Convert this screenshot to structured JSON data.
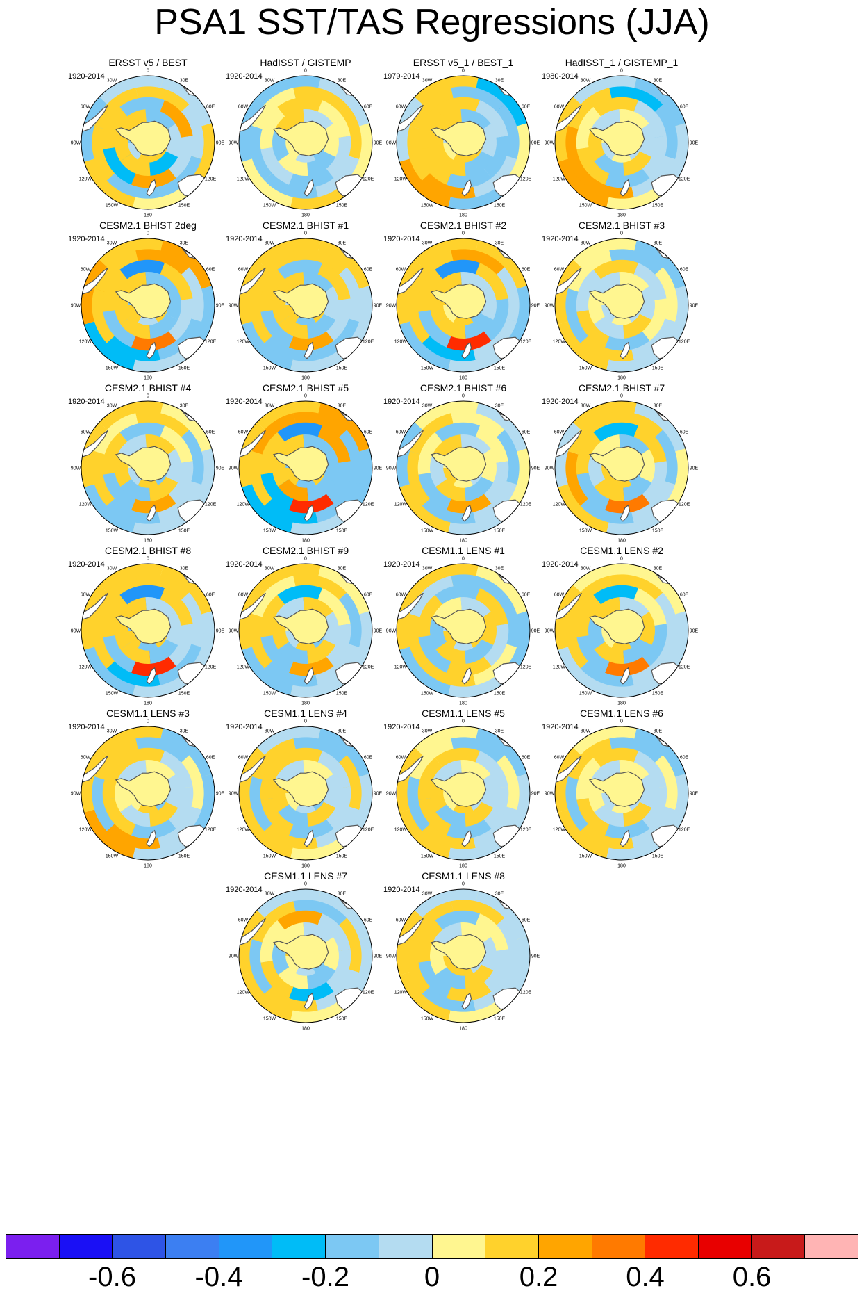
{
  "title": "PSA1 SST/TAS Regressions (JJA)",
  "longitude_labels": [
    "0",
    "30E",
    "60E",
    "90E",
    "120E",
    "150E",
    "180",
    "150W",
    "120W",
    "90W",
    "60W",
    "30W"
  ],
  "panels": [
    {
      "title": "ERSST v5 / BEST",
      "period": "1920-2014",
      "pattern": [
        [
          0.18,
          0.1,
          -0.05
        ],
        [
          -0.22,
          0.15,
          0.12
        ],
        [
          0.2,
          -0.25,
          0.1
        ],
        [
          -0.15,
          0.12,
          0.18
        ],
        [
          0.1,
          -0.18,
          -0.1
        ]
      ]
    },
    {
      "title": "HadISST / GISTEMP",
      "period": "1920-2014",
      "pattern": [
        [
          -0.12,
          -0.1,
          0.05
        ],
        [
          -0.15,
          0.05,
          -0.12
        ],
        [
          -0.18,
          -0.1,
          0.08
        ],
        [
          -0.2,
          -0.15,
          0.05
        ],
        [
          0.05,
          -0.12,
          -0.15
        ]
      ]
    },
    {
      "title": "ERSST v5_1 / BEST_1",
      "period": "1979-2014",
      "pattern": [
        [
          0.1,
          0.12,
          0.05
        ],
        [
          -0.2,
          0.15,
          0.1
        ],
        [
          -0.18,
          0.1,
          0.15
        ],
        [
          0.25,
          0.18,
          0.1
        ],
        [
          0.28,
          -0.1,
          0.15
        ]
      ]
    },
    {
      "title": "HadISST_1 / GISTEMP_1",
      "period": "1980-2014",
      "pattern": [
        [
          -0.1,
          0.08,
          -0.05
        ],
        [
          0.12,
          -0.12,
          0.1
        ],
        [
          -0.15,
          0.1,
          0.05
        ],
        [
          0.28,
          0.22,
          0.12
        ],
        [
          0.2,
          0.1,
          -0.08
        ]
      ]
    },
    {
      "title": "CESM2.1 BHIST 2deg",
      "period": "1920-2014",
      "pattern": [
        [
          0.15,
          -0.1,
          0.12
        ],
        [
          -0.15,
          0.18,
          0.15
        ],
        [
          0.38,
          -0.2,
          0.12
        ],
        [
          -0.3,
          0.1,
          0.15
        ],
        [
          -0.25,
          0.2,
          0.1
        ]
      ]
    },
    {
      "title": "CESM2.1 BHIST #1",
      "period": "1920-2014",
      "pattern": [
        [
          0.12,
          -0.12,
          0.1
        ],
        [
          -0.18,
          0.15,
          0.12
        ],
        [
          0.22,
          -0.15,
          0.1
        ],
        [
          -0.2,
          0.12,
          0.15
        ],
        [
          -0.15,
          0.1,
          0.12
        ]
      ]
    },
    {
      "title": "CESM2.1 BHIST #2",
      "period": "1920-2014",
      "pattern": [
        [
          -0.15,
          0.1,
          0.08
        ],
        [
          -0.2,
          0.12,
          0.1
        ],
        [
          0.45,
          -0.2,
          0.15
        ],
        [
          -0.25,
          0.1,
          0.12
        ],
        [
          -0.2,
          0.15,
          0.1
        ]
      ]
    },
    {
      "title": "CESM2.1 BHIST #3",
      "period": "1920-2014",
      "pattern": [
        [
          -0.1,
          0.08,
          -0.08
        ],
        [
          0.1,
          -0.1,
          0.05
        ],
        [
          -0.15,
          0.1,
          -0.1
        ],
        [
          0.15,
          -0.12,
          0.08
        ],
        [
          0.18,
          0.1,
          0.05
        ]
      ]
    },
    {
      "title": "CESM2.1 BHIST #4",
      "period": "1920-2014",
      "pattern": [
        [
          -0.12,
          0.1,
          -0.08
        ],
        [
          0.1,
          -0.15,
          0.1
        ],
        [
          0.25,
          -0.12,
          0.1
        ],
        [
          -0.15,
          0.18,
          0.08
        ],
        [
          -0.12,
          0.1,
          0.12
        ]
      ]
    },
    {
      "title": "CESM2.1 BHIST #5",
      "period": "1920-2014",
      "pattern": [
        [
          0.18,
          -0.12,
          0.1
        ],
        [
          -0.2,
          0.2,
          0.15
        ],
        [
          0.48,
          -0.25,
          0.18
        ],
        [
          -0.3,
          0.15,
          0.2
        ],
        [
          -0.25,
          0.15,
          0.12
        ]
      ]
    },
    {
      "title": "CESM2.1 BHIST #6",
      "period": "1920-2014",
      "pattern": [
        [
          -0.1,
          0.08,
          0.1
        ],
        [
          -0.15,
          0.12,
          -0.1
        ],
        [
          0.22,
          -0.12,
          0.08
        ],
        [
          -0.12,
          0.15,
          0.1
        ],
        [
          0.1,
          -0.12,
          0.08
        ]
      ]
    },
    {
      "title": "CESM2.1 BHIST #7",
      "period": "1920-2014",
      "pattern": [
        [
          -0.15,
          0.1,
          0.12
        ],
        [
          -0.12,
          0.15,
          -0.1
        ],
        [
          0.3,
          -0.15,
          0.12
        ],
        [
          -0.15,
          0.2,
          0.1
        ],
        [
          0.12,
          -0.1,
          0.1
        ]
      ]
    },
    {
      "title": "CESM2.1 BHIST #8",
      "period": "1920-2014",
      "pattern": [
        [
          0.15,
          -0.12,
          0.1
        ],
        [
          -0.18,
          0.12,
          0.1
        ],
        [
          0.4,
          -0.2,
          0.12
        ],
        [
          -0.22,
          0.12,
          0.15
        ],
        [
          -0.18,
          0.1,
          0.12
        ]
      ]
    },
    {
      "title": "CESM2.1 BHIST #9",
      "period": "1920-2014",
      "pattern": [
        [
          -0.12,
          0.1,
          -0.1
        ],
        [
          0.12,
          -0.15,
          0.1
        ],
        [
          0.28,
          -0.12,
          0.1
        ],
        [
          -0.15,
          0.15,
          0.08
        ],
        [
          -0.12,
          0.12,
          0.1
        ]
      ]
    },
    {
      "title": "CESM1.1 LENS #1",
      "period": "1920-2014",
      "pattern": [
        [
          0.1,
          -0.1,
          0.12
        ],
        [
          -0.12,
          0.1,
          -0.15
        ],
        [
          0.18,
          -0.15,
          0.1
        ],
        [
          0.15,
          0.18,
          -0.1
        ],
        [
          -0.12,
          0.15,
          0.1
        ]
      ]
    },
    {
      "title": "CESM1.1 LENS #2",
      "period": "1920-2014",
      "pattern": [
        [
          -0.12,
          0.1,
          0.08
        ],
        [
          -0.15,
          0.12,
          -0.15
        ],
        [
          0.3,
          -0.12,
          0.15
        ],
        [
          -0.15,
          0.12,
          0.1
        ],
        [
          -0.1,
          0.12,
          0.08
        ]
      ]
    },
    {
      "title": "CESM1.1 LENS #3",
      "period": "1920-2014",
      "pattern": [
        [
          -0.12,
          0.1,
          0.08
        ],
        [
          0.1,
          -0.1,
          0.08
        ],
        [
          -0.15,
          0.12,
          0.1
        ],
        [
          0.2,
          -0.12,
          0.1
        ],
        [
          0.22,
          0.15,
          0.1
        ]
      ]
    },
    {
      "title": "CESM1.1 LENS #4",
      "period": "1920-2014",
      "pattern": [
        [
          -0.15,
          -0.1,
          0.08
        ],
        [
          0.1,
          -0.12,
          0.1
        ],
        [
          -0.2,
          0.12,
          0.1
        ],
        [
          0.18,
          -0.15,
          0.1
        ],
        [
          0.15,
          0.12,
          -0.1
        ]
      ]
    },
    {
      "title": "CESM1.1 LENS #5",
      "period": "1920-2014",
      "pattern": [
        [
          -0.1,
          0.1,
          0.08
        ],
        [
          0.1,
          -0.12,
          0.1
        ],
        [
          -0.2,
          0.12,
          0.1
        ],
        [
          0.15,
          -0.12,
          0.08
        ],
        [
          0.18,
          0.1,
          0.05
        ]
      ]
    },
    {
      "title": "CESM1.1 LENS #6",
      "period": "1920-2014",
      "pattern": [
        [
          -0.1,
          0.08,
          -0.08
        ],
        [
          0.12,
          -0.1,
          0.08
        ],
        [
          -0.18,
          0.1,
          0.08
        ],
        [
          0.15,
          -0.12,
          0.1
        ],
        [
          0.15,
          0.1,
          0.05
        ]
      ]
    },
    {
      "title": "CESM1.1 LENS #7",
      "period": "1920-2014",
      "pattern": [
        [
          -0.15,
          -0.1,
          0.08
        ],
        [
          -0.12,
          0.08,
          -0.12
        ],
        [
          -0.25,
          0.1,
          0.08
        ],
        [
          0.15,
          -0.15,
          0.1
        ],
        [
          0.12,
          0.1,
          -0.08
        ]
      ]
    },
    {
      "title": "CESM1.1 LENS #8",
      "period": "1920-2014",
      "pattern": [
        [
          -0.1,
          0.1,
          0.12
        ],
        [
          0.1,
          -0.12,
          0.08
        ],
        [
          0.15,
          -0.12,
          0.1
        ],
        [
          -0.15,
          0.1,
          0.12
        ],
        [
          0.1,
          0.12,
          -0.08
        ]
      ]
    }
  ],
  "colorbar": {
    "levels": [
      -0.7,
      -0.6,
      -0.5,
      -0.4,
      -0.3,
      -0.2,
      -0.1,
      0,
      0.1,
      0.2,
      0.3,
      0.4,
      0.5,
      0.6,
      0.7
    ],
    "colors": [
      "#7b1fef",
      "#1a10f5",
      "#2e54e6",
      "#3c7ff2",
      "#2196f9",
      "#00bcf7",
      "#7cc8f3",
      "#b4dcf1",
      "#fff690",
      "#ffd22c",
      "#ffa500",
      "#ff7a00",
      "#ff2b00",
      "#e80000",
      "#c81a1a",
      "#ffb4b4"
    ],
    "tick_labels": [
      "-0.6",
      "-0.4",
      "-0.2",
      "0",
      "0.2",
      "0.4",
      "0.6"
    ]
  }
}
